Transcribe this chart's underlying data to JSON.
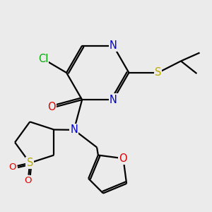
{
  "background_color": "#ebebeb",
  "atom_colors": {
    "C": "#000000",
    "N": "#0000cc",
    "O": "#dd0000",
    "S": "#bbaa00",
    "Cl": "#00aa00"
  },
  "bond_color": "#000000",
  "bond_width": 1.6,
  "font_size": 10.5
}
